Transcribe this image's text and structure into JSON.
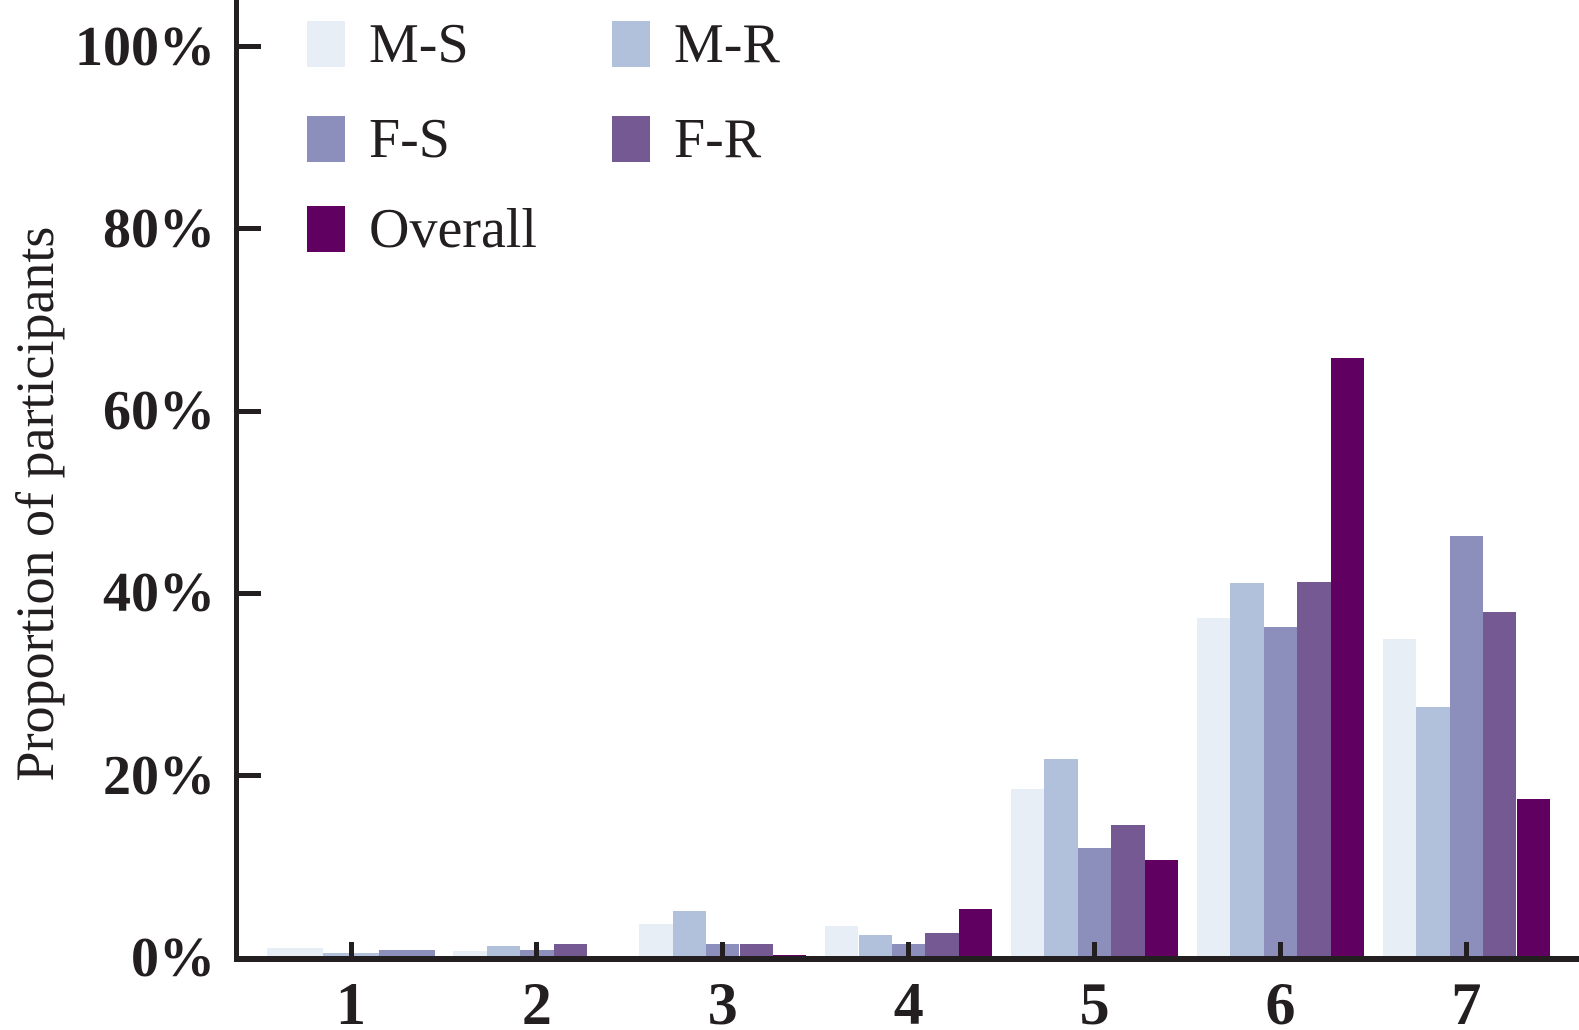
{
  "chart_data": {
    "type": "bar",
    "title": "",
    "xlabel": "",
    "ylabel": "Proportion of participants",
    "categories": [
      "1",
      "2",
      "3",
      "4",
      "5",
      "6",
      "7"
    ],
    "series": [
      {
        "name": "M-S",
        "color": "#E8EEF6",
        "values": [
          1.1,
          0.8,
          3.7,
          3.5,
          18.6,
          37.3,
          35.0
        ]
      },
      {
        "name": "M-R",
        "color": "#B1C1DB",
        "values": [
          0.6,
          1.3,
          5.2,
          2.5,
          21.8,
          41.1,
          27.5
        ]
      },
      {
        "name": "F-S",
        "color": "#8C8EBB",
        "values": [
          0.9,
          0.9,
          1.5,
          1.5,
          12.1,
          36.3,
          46.3
        ]
      },
      {
        "name": "F-R",
        "color": "#755992",
        "values": [
          0.0,
          1.5,
          1.5,
          2.7,
          14.6,
          41.3,
          38.0
        ]
      },
      {
        "name": "Overall",
        "color": "#600060",
        "values": [
          0.0,
          0.2,
          0.3,
          5.4,
          10.8,
          65.8,
          17.5
        ]
      }
    ],
    "ylim": [
      0,
      100
    ],
    "yticks": [
      {
        "value": 0,
        "label": "0%"
      },
      {
        "value": 20,
        "label": "20%"
      },
      {
        "value": 40,
        "label": "40%"
      },
      {
        "value": 60,
        "label": "60%"
      },
      {
        "value": 80,
        "label": "80%"
      },
      {
        "value": 100,
        "label": "100%"
      }
    ],
    "grid": false,
    "legend_position": "top-left-inside-two-columns",
    "axis_color": "#231f20"
  }
}
